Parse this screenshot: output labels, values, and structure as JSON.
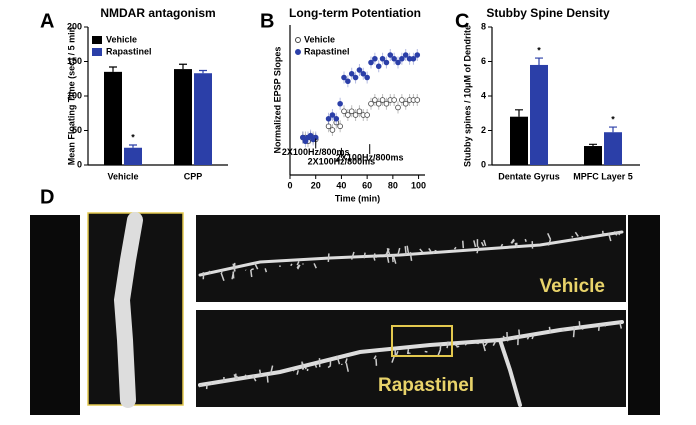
{
  "chart_data": [
    {
      "type": "bar",
      "panel": "A",
      "title": "NMDAR antagonism",
      "ylabel": "Mean Floating Time (sec) / 5 min",
      "categories": [
        "Vehicle",
        "CPP"
      ],
      "series": [
        {
          "name": "Vehicle",
          "color": "#000000",
          "values": [
            135,
            139
          ],
          "errors": [
            7,
            7
          ]
        },
        {
          "name": "Rapastinel",
          "color": "#2b3fa8",
          "values": [
            25,
            133
          ],
          "errors": [
            4,
            4
          ]
        }
      ],
      "ylim": [
        0,
        200
      ],
      "yticks": [
        0,
        50,
        100,
        150,
        200
      ],
      "annotations": [
        {
          "text": "*",
          "series": 1,
          "category": 0
        }
      ]
    },
    {
      "type": "scatter",
      "panel": "B",
      "title": "Long-term Potentiation",
      "ylabel": "Normalized EPSP Slopes",
      "xlabel": "Time (min)",
      "x": [
        10,
        12,
        14,
        16,
        18,
        20,
        30,
        33,
        36,
        39,
        42,
        45,
        48,
        51,
        54,
        57,
        60,
        63,
        66,
        69,
        72,
        75,
        78,
        81,
        84,
        87,
        90,
        93,
        96,
        99
      ],
      "series": [
        {
          "name": "Vehicle",
          "color": "#444444",
          "marker": "open",
          "values": [
            1.0,
            1.0,
            0.9,
            1.0,
            1.0,
            0.95,
            1.3,
            1.2,
            1.4,
            1.3,
            1.7,
            1.6,
            1.7,
            1.6,
            1.7,
            1.6,
            1.6,
            1.9,
            2.0,
            1.9,
            2.0,
            1.9,
            2.0,
            2.0,
            1.8,
            2.0,
            1.9,
            2.0,
            2.0,
            2.0
          ]
        },
        {
          "name": "Rapastinel",
          "color": "#2b3fa8",
          "marker": "filled",
          "values": [
            1.0,
            0.9,
            1.0,
            1.05,
            0.95,
            1.0,
            1.5,
            1.6,
            1.5,
            1.9,
            2.6,
            2.5,
            2.7,
            2.6,
            2.8,
            2.7,
            2.6,
            3.0,
            3.1,
            2.9,
            3.1,
            3.0,
            3.2,
            3.1,
            3.0,
            3.1,
            3.2,
            3.1,
            3.1,
            3.2
          ]
        }
      ],
      "xlim": [
        0,
        105
      ],
      "xticks": [
        0,
        20,
        40,
        60,
        80,
        100
      ],
      "ylim": [
        0,
        4
      ],
      "annotations": [
        {
          "text": "2X100Hz/800ms",
          "x": 20,
          "y": 0.6
        },
        {
          "text": "2X100Hz/800ms",
          "x": 40,
          "y": 0.35
        },
        {
          "text": "2X100Hz/800ms",
          "x": 62,
          "y": 0.45
        }
      ]
    },
    {
      "type": "bar",
      "panel": "C",
      "title": "Stubby Spine Density",
      "ylabel": "Stubby spines / 10μM of Dendrite",
      "categories": [
        "Dentate Gyrus",
        "MPFC Layer 5"
      ],
      "series": [
        {
          "color": "#000000",
          "values": [
            2.8,
            1.1
          ],
          "errors": [
            0.4,
            0.1
          ]
        },
        {
          "color": "#2b3fa8",
          "values": [
            5.8,
            1.9
          ],
          "errors": [
            0.4,
            0.3
          ]
        }
      ],
      "ylim": [
        0,
        8
      ],
      "yticks": [
        0,
        2,
        4,
        6,
        8
      ],
      "annotations": [
        {
          "text": "*",
          "series": 1,
          "category": 0
        },
        {
          "text": "*",
          "series": 1,
          "category": 1
        }
      ]
    }
  ],
  "panel_d": {
    "label": "D",
    "image_labels": [
      "Vehicle",
      "Rapastinel"
    ]
  }
}
